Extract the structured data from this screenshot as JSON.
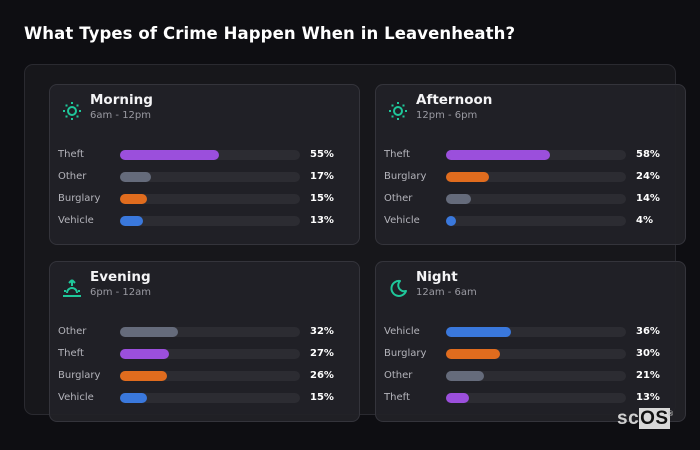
{
  "title": "What Types of Crime Happen When in Leavenheath?",
  "colors": {
    "Theft": "#9b4fdc",
    "Other": "#656b7b",
    "Burglary": "#e06c1e",
    "Vehicle": "#3a78dc",
    "icon": "#1fc79a"
  },
  "cards": [
    {
      "name": "Morning",
      "range": "6am - 12pm",
      "icon": "sun-icon",
      "rows": [
        {
          "label": "Theft",
          "value": 55,
          "pct": "55%"
        },
        {
          "label": "Other",
          "value": 17,
          "pct": "17%"
        },
        {
          "label": "Burglary",
          "value": 15,
          "pct": "15%"
        },
        {
          "label": "Vehicle",
          "value": 13,
          "pct": "13%"
        }
      ]
    },
    {
      "name": "Afternoon",
      "range": "12pm - 6pm",
      "icon": "sun-icon",
      "rows": [
        {
          "label": "Theft",
          "value": 58,
          "pct": "58%"
        },
        {
          "label": "Burglary",
          "value": 24,
          "pct": "24%"
        },
        {
          "label": "Other",
          "value": 14,
          "pct": "14%"
        },
        {
          "label": "Vehicle",
          "value": 4,
          "pct": "4%"
        }
      ]
    },
    {
      "name": "Evening",
      "range": "6pm - 12am",
      "icon": "sunrise-icon",
      "rows": [
        {
          "label": "Other",
          "value": 32,
          "pct": "32%"
        },
        {
          "label": "Theft",
          "value": 27,
          "pct": "27%"
        },
        {
          "label": "Burglary",
          "value": 26,
          "pct": "26%"
        },
        {
          "label": "Vehicle",
          "value": 15,
          "pct": "15%"
        }
      ]
    },
    {
      "name": "Night",
      "range": "12am - 6am",
      "icon": "moon-icon",
      "rows": [
        {
          "label": "Vehicle",
          "value": 36,
          "pct": "36%"
        },
        {
          "label": "Burglary",
          "value": 30,
          "pct": "30%"
        },
        {
          "label": "Other",
          "value": 21,
          "pct": "21%"
        },
        {
          "label": "Theft",
          "value": 13,
          "pct": "13%"
        }
      ]
    }
  ],
  "logo": {
    "sc": "sc",
    "os": "OS",
    "reg": "®"
  },
  "chart_data": {
    "type": "bar",
    "title": "What Types of Crime Happen When in Leavenheath?",
    "orientation": "horizontal",
    "unit": "%",
    "xlim": [
      0,
      100
    ],
    "grid": false,
    "legend": "none",
    "panels": [
      {
        "title": "Morning",
        "subtitle": "6am - 12pm",
        "categories": [
          "Theft",
          "Other",
          "Burglary",
          "Vehicle"
        ],
        "values": [
          55,
          17,
          15,
          13
        ]
      },
      {
        "title": "Afternoon",
        "subtitle": "12pm - 6pm",
        "categories": [
          "Theft",
          "Burglary",
          "Other",
          "Vehicle"
        ],
        "values": [
          58,
          24,
          14,
          4
        ]
      },
      {
        "title": "Evening",
        "subtitle": "6pm - 12am",
        "categories": [
          "Other",
          "Theft",
          "Burglary",
          "Vehicle"
        ],
        "values": [
          32,
          27,
          26,
          15
        ]
      },
      {
        "title": "Night",
        "subtitle": "12am - 6am",
        "categories": [
          "Vehicle",
          "Burglary",
          "Other",
          "Theft"
        ],
        "values": [
          36,
          30,
          21,
          13
        ]
      }
    ]
  }
}
